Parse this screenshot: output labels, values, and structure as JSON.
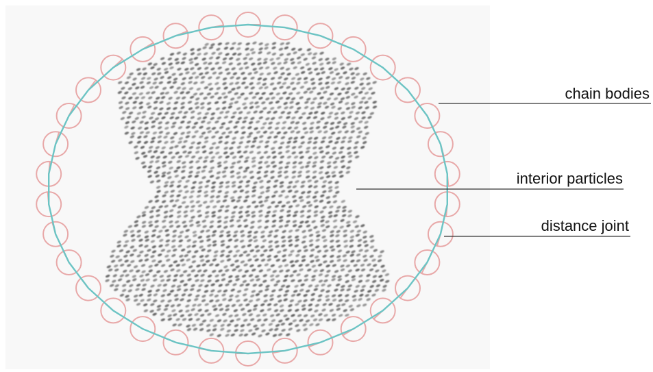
{
  "labels": {
    "chain_bodies": "chain bodies",
    "interior_particles": "interior particles",
    "distance_joint": "distance joint"
  },
  "colors": {
    "chain_body": "#e8a8a8",
    "distance_joint": "#6cc4c4",
    "particle": "#555555",
    "leader_line": "#333333",
    "background": "#f8f8f8"
  }
}
